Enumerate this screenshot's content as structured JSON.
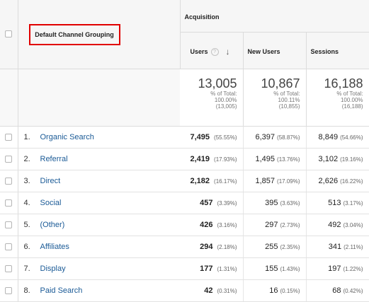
{
  "header": {
    "dimension_label": "Default Channel Grouping",
    "group_label": "Acquisition",
    "metrics": [
      {
        "label": "Users",
        "help": "?",
        "sorted": true
      },
      {
        "label": "New Users"
      },
      {
        "label": "Sessions"
      }
    ]
  },
  "totals": {
    "users": {
      "value": "13,005",
      "pct_label": "% of Total:",
      "pct": "100.00%",
      "base": "(13,005)"
    },
    "new_users": {
      "value": "10,867",
      "pct_label": "% of Total:",
      "pct": "100.11%",
      "base": "(10,855)"
    },
    "sessions": {
      "value": "16,188",
      "pct_label": "% of Total:",
      "pct": "100.00%",
      "base": "(16,188)"
    }
  },
  "rows": [
    {
      "index": "1.",
      "channel": "Organic Search",
      "users": "7,495",
      "users_pct": "(55.55%)",
      "new_users": "6,397",
      "new_users_pct": "(58.87%)",
      "sessions": "8,849",
      "sessions_pct": "(54.66%)"
    },
    {
      "index": "2.",
      "channel": "Referral",
      "users": "2,419",
      "users_pct": "(17.93%)",
      "new_users": "1,495",
      "new_users_pct": "(13.76%)",
      "sessions": "3,102",
      "sessions_pct": "(19.16%)"
    },
    {
      "index": "3.",
      "channel": "Direct",
      "users": "2,182",
      "users_pct": "(16.17%)",
      "new_users": "1,857",
      "new_users_pct": "(17.09%)",
      "sessions": "2,626",
      "sessions_pct": "(16.22%)"
    },
    {
      "index": "4.",
      "channel": "Social",
      "users": "457",
      "users_pct": "(3.39%)",
      "new_users": "395",
      "new_users_pct": "(3.63%)",
      "sessions": "513",
      "sessions_pct": "(3.17%)"
    },
    {
      "index": "5.",
      "channel": "(Other)",
      "users": "426",
      "users_pct": "(3.16%)",
      "new_users": "297",
      "new_users_pct": "(2.73%)",
      "sessions": "492",
      "sessions_pct": "(3.04%)"
    },
    {
      "index": "6.",
      "channel": "Affiliates",
      "users": "294",
      "users_pct": "(2.18%)",
      "new_users": "255",
      "new_users_pct": "(2.35%)",
      "sessions": "341",
      "sessions_pct": "(2.11%)"
    },
    {
      "index": "7.",
      "channel": "Display",
      "users": "177",
      "users_pct": "(1.31%)",
      "new_users": "155",
      "new_users_pct": "(1.43%)",
      "sessions": "197",
      "sessions_pct": "(1.22%)"
    },
    {
      "index": "8.",
      "channel": "Paid Search",
      "users": "42",
      "users_pct": "(0.31%)",
      "new_users": "16",
      "new_users_pct": "(0.15%)",
      "sessions": "68",
      "sessions_pct": "(0.42%)"
    }
  ]
}
